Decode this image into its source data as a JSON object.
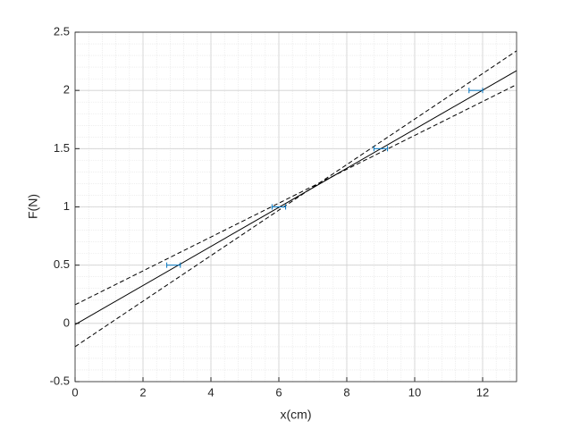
{
  "chart_data": {
    "type": "errorbar",
    "xlabel": "x(cm)",
    "ylabel": "F(N)",
    "x": [
      2.9,
      6.0,
      9.0,
      11.8
    ],
    "values": [
      0.5,
      1.0,
      1.5,
      2.0
    ],
    "xerr": [
      0.2,
      0.2,
      0.2,
      0.2
    ],
    "color": "#0072bd",
    "series": [
      {
        "x": [
          0,
          13
        ],
        "values": [
          -0.01,
          2.17
        ],
        "color": "#000000",
        "dash": "solid"
      },
      {
        "x": [
          0,
          13
        ],
        "values": [
          0.16,
          2.05
        ],
        "color": "#000000",
        "dash": "dashed"
      },
      {
        "x": [
          0,
          13
        ],
        "values": [
          -0.2,
          2.34
        ],
        "color": "#000000",
        "dash": "dashed"
      }
    ],
    "xlim": [
      0,
      13
    ],
    "xticks": [
      0,
      2,
      4,
      6,
      8,
      10,
      12
    ],
    "ylim": [
      -0.5,
      2.5
    ],
    "yticks": [
      -0.5,
      0,
      0.5,
      1,
      1.5,
      2,
      2.5
    ],
    "grid": true,
    "minor_grid": true
  }
}
